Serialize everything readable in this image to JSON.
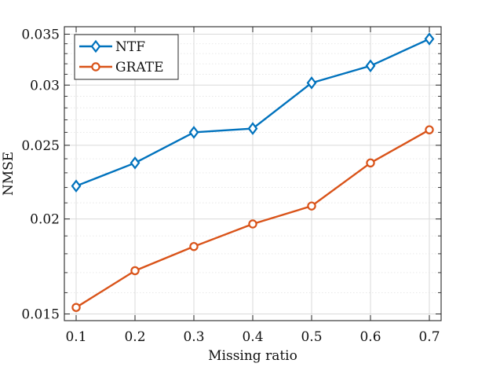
{
  "chart_data": {
    "type": "line",
    "title": "",
    "xlabel": "Missing ratio",
    "ylabel": "NMSE",
    "y_scale": "log",
    "grid": true,
    "minor_grid": true,
    "legend_position": "top-left",
    "x": [
      0.1,
      0.2,
      0.3,
      0.4,
      0.5,
      0.6,
      0.7
    ],
    "x_tick_labels": [
      "0.1",
      "0.2",
      "0.3",
      "0.4",
      "0.5",
      "0.6",
      "0.7"
    ],
    "xlim": [
      0.08,
      0.72
    ],
    "y_ticks": [
      0.015,
      0.02,
      0.025,
      0.03,
      0.035
    ],
    "y_tick_labels": [
      "0.015",
      "0.02",
      "0.025",
      "0.03",
      "0.035"
    ],
    "ylim": [
      0.0147,
      0.0358
    ],
    "series": [
      {
        "name": "NTF",
        "color": "#0072BD",
        "marker": "diamond",
        "values": [
          0.0221,
          0.0237,
          0.026,
          0.0263,
          0.0302,
          0.0318,
          0.0345
        ]
      },
      {
        "name": "GRATE",
        "color": "#D95319",
        "marker": "circle",
        "values": [
          0.0153,
          0.0171,
          0.0184,
          0.0197,
          0.0208,
          0.0237,
          0.0262
        ]
      }
    ]
  }
}
